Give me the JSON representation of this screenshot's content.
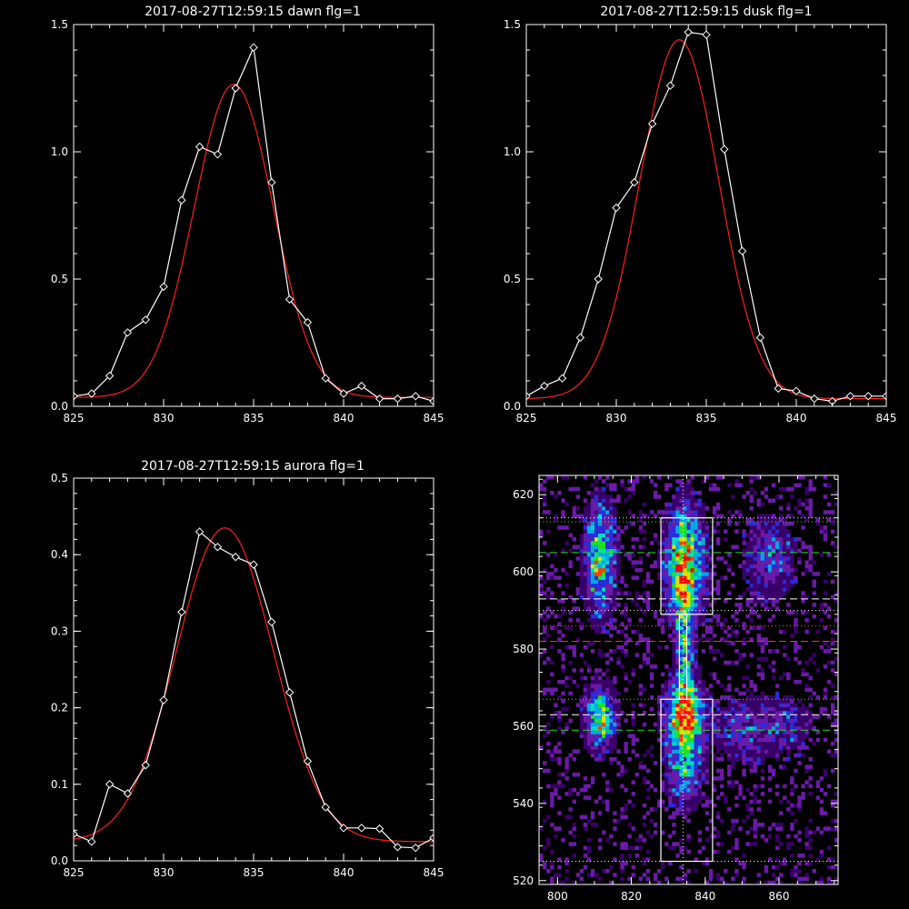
{
  "chart_data": [
    {
      "type": "line",
      "title": "2017-08-27T12:59:15 dawn flg=1",
      "xlim": [
        825,
        845
      ],
      "ylim": [
        0,
        1.5
      ],
      "xticks": [
        "825",
        "830",
        "835",
        "840",
        "845"
      ],
      "yticks": [
        "0.0",
        "0.5",
        "1.0",
        "1.5"
      ],
      "series": [
        {
          "kind": "data",
          "color": "#ffffff",
          "marker": "diamond",
          "x": [
            825,
            826,
            827,
            828,
            829,
            830,
            831,
            832,
            833,
            834,
            835,
            836,
            837,
            838,
            839,
            840,
            841,
            842,
            843,
            844,
            845
          ],
          "y": [
            0.04,
            0.05,
            0.12,
            0.29,
            0.34,
            0.47,
            0.81,
            1.02,
            0.99,
            1.25,
            1.41,
            0.88,
            0.42,
            0.33,
            0.11,
            0.05,
            0.08,
            0.03,
            0.03,
            0.04,
            0.02
          ]
        },
        {
          "kind": "fit",
          "color": "#ff2020",
          "amplitude": 1.23,
          "center": 833.9,
          "sigma": 2.2,
          "baseline": 0.035
        }
      ]
    },
    {
      "type": "line",
      "title": "2017-08-27T12:59:15 dusk flg=1",
      "xlim": [
        825,
        845
      ],
      "ylim": [
        0,
        1.5
      ],
      "xticks": [
        "825",
        "830",
        "835",
        "840",
        "845"
      ],
      "yticks": [
        "0.0",
        "0.5",
        "1.0",
        "1.5"
      ],
      "series": [
        {
          "kind": "data",
          "color": "#ffffff",
          "marker": "diamond",
          "x": [
            825,
            826,
            827,
            828,
            829,
            830,
            831,
            832,
            833,
            834,
            835,
            836,
            837,
            838,
            839,
            840,
            841,
            842,
            843,
            844,
            845
          ],
          "y": [
            0.04,
            0.08,
            0.11,
            0.27,
            0.5,
            0.78,
            0.88,
            1.11,
            1.26,
            1.47,
            1.46,
            1.01,
            0.61,
            0.27,
            0.07,
            0.06,
            0.03,
            0.02,
            0.04,
            0.04,
            0.04
          ]
        },
        {
          "kind": "fit",
          "color": "#ff2020",
          "amplitude": 1.41,
          "center": 833.5,
          "sigma": 2.2,
          "baseline": 0.03
        }
      ]
    },
    {
      "type": "line",
      "title": "2017-08-27T12:59:15 aurora flg=1",
      "xlim": [
        825,
        845
      ],
      "ylim": [
        0,
        0.5
      ],
      "xticks": [
        "825",
        "830",
        "835",
        "840",
        "845"
      ],
      "yticks": [
        "0.0",
        "0.1",
        "0.2",
        "0.3",
        "0.4",
        "0.5"
      ],
      "series": [
        {
          "kind": "data",
          "color": "#ffffff",
          "marker": "diamond",
          "x": [
            825,
            826,
            827,
            828,
            829,
            830,
            831,
            832,
            833,
            834,
            835,
            836,
            837,
            838,
            839,
            840,
            841,
            842,
            843,
            844,
            845
          ],
          "y": [
            0.035,
            0.025,
            0.1,
            0.088,
            0.125,
            0.21,
            0.325,
            0.43,
            0.41,
            0.397,
            0.387,
            0.312,
            0.22,
            0.13,
            0.07,
            0.043,
            0.043,
            0.042,
            0.018,
            0.017,
            0.03
          ]
        },
        {
          "kind": "fit",
          "color": "#ff2020",
          "amplitude": 0.41,
          "center": 833.4,
          "sigma": 2.7,
          "baseline": 0.025
        }
      ]
    },
    {
      "type": "heatmap",
      "xlim": [
        795,
        876
      ],
      "ylim": [
        519,
        625
      ],
      "xticks": [
        "800",
        "820",
        "840",
        "860"
      ],
      "yticks": [
        "520",
        "540",
        "560",
        "580",
        "600",
        "620"
      ],
      "colormap": [
        "#000000",
        "#3a006a",
        "#6a1aa8",
        "#2b2bd8",
        "#00a8e8",
        "#00e0c0",
        "#20e020",
        "#e0e000",
        "#ff4000",
        "#ff0000"
      ],
      "blobs": [
        {
          "x": 834,
          "y": 601,
          "sx": 3.2,
          "sy": 9,
          "amp": 1.0
        },
        {
          "x": 834,
          "y": 562,
          "sx": 3.2,
          "sy": 6,
          "amp": 1.0
        },
        {
          "x": 834,
          "y": 548,
          "sx": 3.0,
          "sy": 6,
          "amp": 0.45
        },
        {
          "x": 834,
          "y": 580,
          "sx": 1.5,
          "sy": 11,
          "amp": 0.5
        },
        {
          "x": 811,
          "y": 603,
          "sx": 2.6,
          "sy": 9,
          "amp": 0.72
        },
        {
          "x": 811,
          "y": 562,
          "sx": 2.6,
          "sy": 5,
          "amp": 0.75
        },
        {
          "x": 857,
          "y": 603,
          "sx": 4.5,
          "sy": 7,
          "amp": 0.3
        },
        {
          "x": 860,
          "y": 560,
          "sx": 6,
          "sy": 5,
          "amp": 0.22
        },
        {
          "x": 849,
          "y": 558,
          "sx": 5,
          "sy": 6,
          "amp": 0.2
        }
      ],
      "boxes": [
        {
          "x0": 828,
          "x1": 842,
          "y0": 589,
          "y1": 614,
          "color": "#ffffff"
        },
        {
          "x0": 828,
          "x1": 842,
          "y0": 525,
          "y1": 567,
          "color": "#ffffff"
        },
        {
          "x0": 833,
          "x1": 835,
          "y0": 567,
          "y1": 589,
          "color": "#ffffff"
        }
      ],
      "hlines": [
        {
          "y": 614,
          "color": "#ffffff",
          "style": "dotted"
        },
        {
          "y": 613,
          "color": "#20ff20",
          "style": "dotted"
        },
        {
          "y": 605,
          "color": "#20e020",
          "style": "dashed"
        },
        {
          "y": 593,
          "color": "#ffffff",
          "style": "dashed"
        },
        {
          "y": 590,
          "color": "#ffffff",
          "style": "dotted"
        },
        {
          "y": 586,
          "color": "#ff5050",
          "style": "dotted"
        },
        {
          "y": 582,
          "color": "#ff3030",
          "style": "dashed"
        },
        {
          "y": 567,
          "color": "#20ff20",
          "style": "dotted"
        },
        {
          "y": 563,
          "color": "#ffffff",
          "style": "dashed"
        },
        {
          "y": 559,
          "color": "#20e020",
          "style": "dashed"
        },
        {
          "y": 525,
          "color": "#ffffff",
          "style": "dotted"
        }
      ],
      "vlines": [
        {
          "x": 834,
          "color": "#ffffff",
          "style": "dotted"
        }
      ]
    }
  ]
}
